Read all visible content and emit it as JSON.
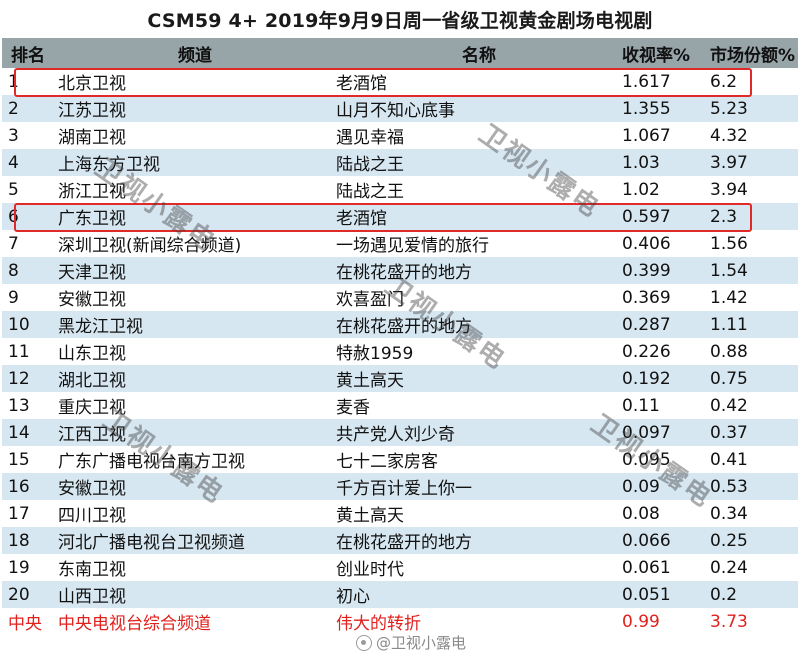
{
  "title": "CSM59 4+ 2019年9月9日周一省级卫视黄金剧场电视剧",
  "headers": {
    "rank": "排名",
    "channel": "频道",
    "show": "名称",
    "rating": "收视率%",
    "share": "市场份额%"
  },
  "rows": [
    {
      "rank": "1",
      "channel": "北京卫视",
      "show": "老酒馆",
      "rating": "1.617",
      "share": "6.2"
    },
    {
      "rank": "2",
      "channel": "江苏卫视",
      "show": "山月不知心底事",
      "rating": "1.355",
      "share": "5.23"
    },
    {
      "rank": "3",
      "channel": "湖南卫视",
      "show": "遇见幸福",
      "rating": "1.067",
      "share": "4.32"
    },
    {
      "rank": "4",
      "channel": "上海东方卫视",
      "show": "陆战之王",
      "rating": "1.03",
      "share": "3.97"
    },
    {
      "rank": "5",
      "channel": "浙江卫视",
      "show": "陆战之王",
      "rating": "1.02",
      "share": "3.94"
    },
    {
      "rank": "6",
      "channel": "广东卫视",
      "show": "老酒馆",
      "rating": "0.597",
      "share": "2.3"
    },
    {
      "rank": "7",
      "channel": "深圳卫视(新闻综合频道)",
      "show": "一场遇见爱情的旅行",
      "rating": "0.406",
      "share": "1.56"
    },
    {
      "rank": "8",
      "channel": "天津卫视",
      "show": "在桃花盛开的地方",
      "rating": "0.399",
      "share": "1.54"
    },
    {
      "rank": "9",
      "channel": "安徽卫视",
      "show": "欢喜盈门",
      "rating": "0.369",
      "share": "1.42"
    },
    {
      "rank": "10",
      "channel": "黑龙江卫视",
      "show": "在桃花盛开的地方",
      "rating": "0.287",
      "share": "1.11"
    },
    {
      "rank": "11",
      "channel": "山东卫视",
      "show": "特赦1959",
      "rating": "0.226",
      "share": "0.88"
    },
    {
      "rank": "12",
      "channel": "湖北卫视",
      "show": "黄土高天",
      "rating": "0.192",
      "share": "0.75"
    },
    {
      "rank": "13",
      "channel": "重庆卫视",
      "show": "麦香",
      "rating": "0.11",
      "share": "0.42"
    },
    {
      "rank": "14",
      "channel": "江西卫视",
      "show": "共产党人刘少奇",
      "rating": "0.097",
      "share": "0.37"
    },
    {
      "rank": "15",
      "channel": "广东广播电视台南方卫视",
      "show": "七十二家房客",
      "rating": "0.095",
      "share": "0.41"
    },
    {
      "rank": "16",
      "channel": "安徽卫视",
      "show": "千方百计爱上你一",
      "rating": "0.09",
      "share": "0.53"
    },
    {
      "rank": "17",
      "channel": "四川卫视",
      "show": "黄土高天",
      "rating": "0.08",
      "share": "0.34"
    },
    {
      "rank": "18",
      "channel": "河北广播电视台卫视频道",
      "show": "在桃花盛开的地方",
      "rating": "0.066",
      "share": "0.25"
    },
    {
      "rank": "19",
      "channel": "东南卫视",
      "show": "创业时代",
      "rating": "0.061",
      "share": "0.24"
    },
    {
      "rank": "20",
      "channel": "山西卫视",
      "show": "初心",
      "rating": "0.051",
      "share": "0.2"
    }
  ],
  "cctv_row": {
    "rank": "中央",
    "channel": "中央电视台综合频道",
    "show": "伟大的转折",
    "rating": "0.99",
    "share": "3.73"
  },
  "watermark_text": "卫视小露电",
  "credit": "@卫视小露电",
  "colors": {
    "header_bg": "#97a4a8",
    "stripe": "#d7e7f1",
    "highlight": "#e02a2a",
    "cctv_text": "#e0211d"
  }
}
